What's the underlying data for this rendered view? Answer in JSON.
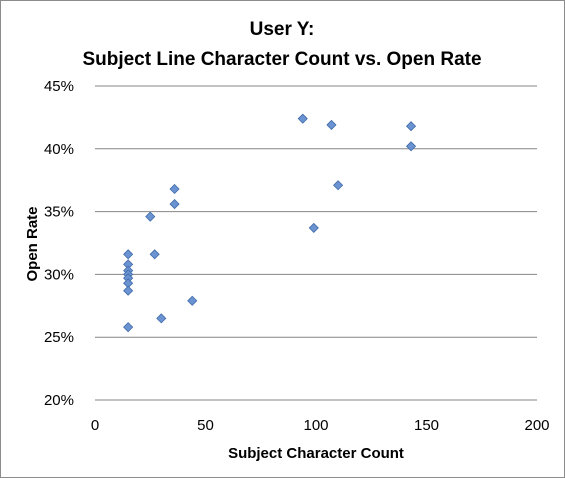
{
  "chart_data": {
    "type": "scatter",
    "title_lines": [
      "User Y:",
      "Subject Line Character Count vs. Open Rate"
    ],
    "xlabel": "Subject Character Count",
    "ylabel": "Open Rate",
    "xlim": [
      0,
      200
    ],
    "ylim": [
      0.2,
      0.45
    ],
    "x_ticks": [
      0,
      50,
      100,
      150,
      200
    ],
    "x_tick_labels": [
      "0",
      "50",
      "100",
      "150",
      "200"
    ],
    "y_ticks": [
      0.2,
      0.25,
      0.3,
      0.35,
      0.4,
      0.45
    ],
    "y_tick_labels": [
      "20%",
      "25%",
      "30%",
      "35%",
      "40%",
      "45%"
    ],
    "grid": "horizontal",
    "legend": "none",
    "marker": "diamond",
    "marker_color": "#6b93d1",
    "marker_stroke": "#3f6aa8",
    "series": [
      {
        "points": [
          {
            "x": 15,
            "y": 0.316
          },
          {
            "x": 15,
            "y": 0.308
          },
          {
            "x": 15,
            "y": 0.303
          },
          {
            "x": 15,
            "y": 0.3
          },
          {
            "x": 15,
            "y": 0.297
          },
          {
            "x": 15,
            "y": 0.293
          },
          {
            "x": 15,
            "y": 0.287
          },
          {
            "x": 15,
            "y": 0.258
          },
          {
            "x": 25,
            "y": 0.346
          },
          {
            "x": 27,
            "y": 0.316
          },
          {
            "x": 30,
            "y": 0.265
          },
          {
            "x": 36,
            "y": 0.368
          },
          {
            "x": 36,
            "y": 0.356
          },
          {
            "x": 44,
            "y": 0.279
          },
          {
            "x": 94,
            "y": 0.424
          },
          {
            "x": 99,
            "y": 0.337
          },
          {
            "x": 107,
            "y": 0.419
          },
          {
            "x": 110,
            "y": 0.371
          },
          {
            "x": 143,
            "y": 0.418
          },
          {
            "x": 143,
            "y": 0.402
          }
        ]
      }
    ]
  }
}
